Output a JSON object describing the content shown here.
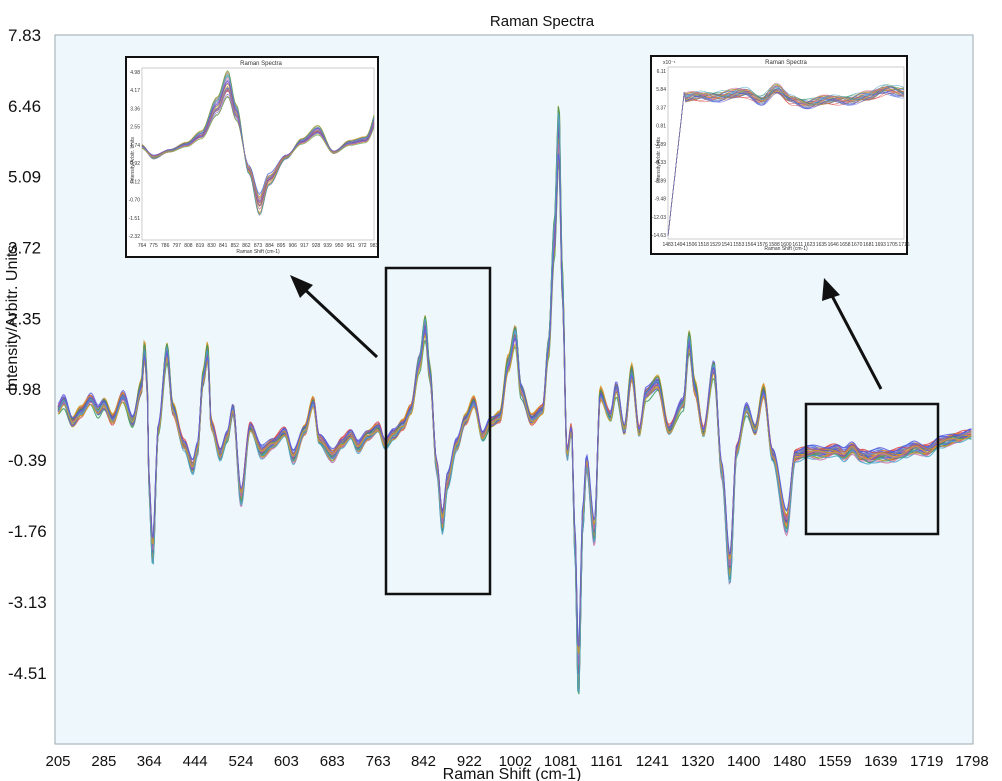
{
  "chart_data": {
    "type": "line",
    "title": "Raman Spectra",
    "xlabel": "Raman Shift (cm-1)",
    "ylabel": "Intensity/Arbitr. Units",
    "xlim": [
      205,
      1798
    ],
    "ylim": [
      -5.88,
      7.83
    ],
    "x_ticks": [
      "205",
      "285",
      "364",
      "444",
      "524",
      "603",
      "683",
      "763",
      "842",
      "922",
      "1002",
      "1081",
      "1161",
      "1241",
      "1320",
      "1400",
      "1480",
      "1559",
      "1639",
      "1719",
      "1798"
    ],
    "y_ticks": [
      "7.83",
      "6.46",
      "5.09",
      "3.72",
      "2.35",
      "0.98",
      "-0.39",
      "-1.76",
      "-3.13",
      "-4.51"
    ],
    "n_series": 30,
    "series_colors": [
      "#2f6fd0",
      "#d94b4b",
      "#e08a2a",
      "#7a4fb3",
      "#3a9a5a",
      "#8a8a8a",
      "#c96fa8",
      "#4aa3c9",
      "#c9a12a",
      "#5a5adf"
    ],
    "base_curve": [
      [
        205,
        0.6
      ],
      [
        215,
        0.75
      ],
      [
        230,
        0.35
      ],
      [
        245,
        0.55
      ],
      [
        262,
        0.8
      ],
      [
        275,
        0.55
      ],
      [
        285,
        0.7
      ],
      [
        300,
        0.4
      ],
      [
        318,
        0.85
      ],
      [
        335,
        0.35
      ],
      [
        350,
        1.0
      ],
      [
        356,
        1.75
      ],
      [
        360,
        1.2
      ],
      [
        364,
        -1.0
      ],
      [
        370,
        -2.2
      ],
      [
        380,
        0.2
      ],
      [
        395,
        1.7
      ],
      [
        405,
        0.6
      ],
      [
        425,
        -0.1
      ],
      [
        440,
        -0.55
      ],
      [
        448,
        -0.2
      ],
      [
        458,
        1.2
      ],
      [
        466,
        1.7
      ],
      [
        472,
        0.3
      ],
      [
        488,
        -0.3
      ],
      [
        500,
        0.05
      ],
      [
        510,
        0.6
      ],
      [
        524,
        -1.1
      ],
      [
        540,
        0.25
      ],
      [
        560,
        -0.25
      ],
      [
        580,
        -0.05
      ],
      [
        600,
        0.15
      ],
      [
        615,
        -0.35
      ],
      [
        635,
        0.2
      ],
      [
        650,
        0.75
      ],
      [
        660,
        0.0
      ],
      [
        683,
        -0.3
      ],
      [
        700,
        -0.05
      ],
      [
        715,
        0.1
      ],
      [
        728,
        -0.15
      ],
      [
        745,
        0.1
      ],
      [
        763,
        0.25
      ],
      [
        775,
        -0.1
      ],
      [
        790,
        0.1
      ],
      [
        806,
        0.3
      ],
      [
        820,
        0.6
      ],
      [
        835,
        1.5
      ],
      [
        845,
        2.2
      ],
      [
        853,
        1.3
      ],
      [
        865,
        -0.5
      ],
      [
        875,
        -1.6
      ],
      [
        884,
        -0.8
      ],
      [
        900,
        -0.1
      ],
      [
        915,
        0.4
      ],
      [
        930,
        0.75
      ],
      [
        945,
        0.05
      ],
      [
        960,
        0.35
      ],
      [
        975,
        0.45
      ],
      [
        990,
        1.5
      ],
      [
        1002,
        2.05
      ],
      [
        1012,
        0.95
      ],
      [
        1030,
        0.4
      ],
      [
        1050,
        0.6
      ],
      [
        1060,
        1.8
      ],
      [
        1070,
        3.9
      ],
      [
        1078,
        6.0
      ],
      [
        1084,
        3.0
      ],
      [
        1092,
        -0.3
      ],
      [
        1100,
        0.25
      ],
      [
        1106,
        -2.0
      ],
      [
        1112,
        -4.6
      ],
      [
        1120,
        -1.5
      ],
      [
        1126,
        -0.45
      ],
      [
        1140,
        -1.8
      ],
      [
        1150,
        0.9
      ],
      [
        1168,
        0.45
      ],
      [
        1178,
        1.0
      ],
      [
        1192,
        0.2
      ],
      [
        1205,
        1.3
      ],
      [
        1218,
        0.15
      ],
      [
        1230,
        0.9
      ],
      [
        1250,
        1.1
      ],
      [
        1270,
        0.2
      ],
      [
        1295,
        0.7
      ],
      [
        1305,
        1.9
      ],
      [
        1315,
        1.0
      ],
      [
        1330,
        0.15
      ],
      [
        1348,
        1.4
      ],
      [
        1362,
        -0.6
      ],
      [
        1376,
        -2.5
      ],
      [
        1388,
        -0.2
      ],
      [
        1405,
        0.6
      ],
      [
        1420,
        0.2
      ],
      [
        1435,
        0.95
      ],
      [
        1450,
        -0.3
      ],
      [
        1475,
        -1.6
      ],
      [
        1490,
        -0.3
      ],
      [
        1510,
        -0.25
      ],
      [
        1530,
        -0.25
      ],
      [
        1560,
        -0.2
      ],
      [
        1575,
        -0.3
      ],
      [
        1590,
        -0.15
      ],
      [
        1605,
        -0.3
      ],
      [
        1620,
        -0.35
      ],
      [
        1640,
        -0.3
      ],
      [
        1660,
        -0.3
      ],
      [
        1680,
        -0.25
      ],
      [
        1700,
        -0.15
      ],
      [
        1720,
        -0.2
      ],
      [
        1745,
        -0.05
      ],
      [
        1770,
        0.05
      ],
      [
        1798,
        0.1
      ]
    ]
  },
  "insets": [
    {
      "title": "Raman Spectra",
      "xlabel": "Raman Shift (cm-1)",
      "ylabel": "Intensity/Arbitr. Units",
      "y_ticks": [
        "4.98",
        "4.17",
        "3.36",
        "2.55",
        "1.74",
        "0.92",
        "0.12",
        "-0.70",
        "-1.51",
        "-2.32"
      ],
      "x_ticks": [
        "764",
        "775",
        "786",
        "797",
        "808",
        "819",
        "830",
        "841",
        "852",
        "862",
        "873",
        "884",
        "895",
        "906",
        "917",
        "928",
        "939",
        "950",
        "961",
        "972",
        "983"
      ]
    },
    {
      "title": "Raman Spectra",
      "xlabel": "Raman Shift (cm-1)",
      "ylabel": "Intensity/Arbitr. Units",
      "exponent": "x10⁻¹",
      "y_ticks": [
        "6.11",
        "5.84",
        "3.37",
        "0.81",
        "-2.89",
        "-4.33",
        "-6.89",
        "-9.48",
        "-12.03",
        "-14.63"
      ],
      "x_ticks": [
        "1483",
        "1494",
        "1506",
        "1518",
        "1529",
        "1541",
        "1553",
        "1564",
        "1576",
        "1588",
        "1600",
        "1611",
        "1623",
        "1635",
        "1646",
        "1658",
        "1670",
        "1681",
        "1693",
        "1705",
        "1716"
      ]
    }
  ]
}
